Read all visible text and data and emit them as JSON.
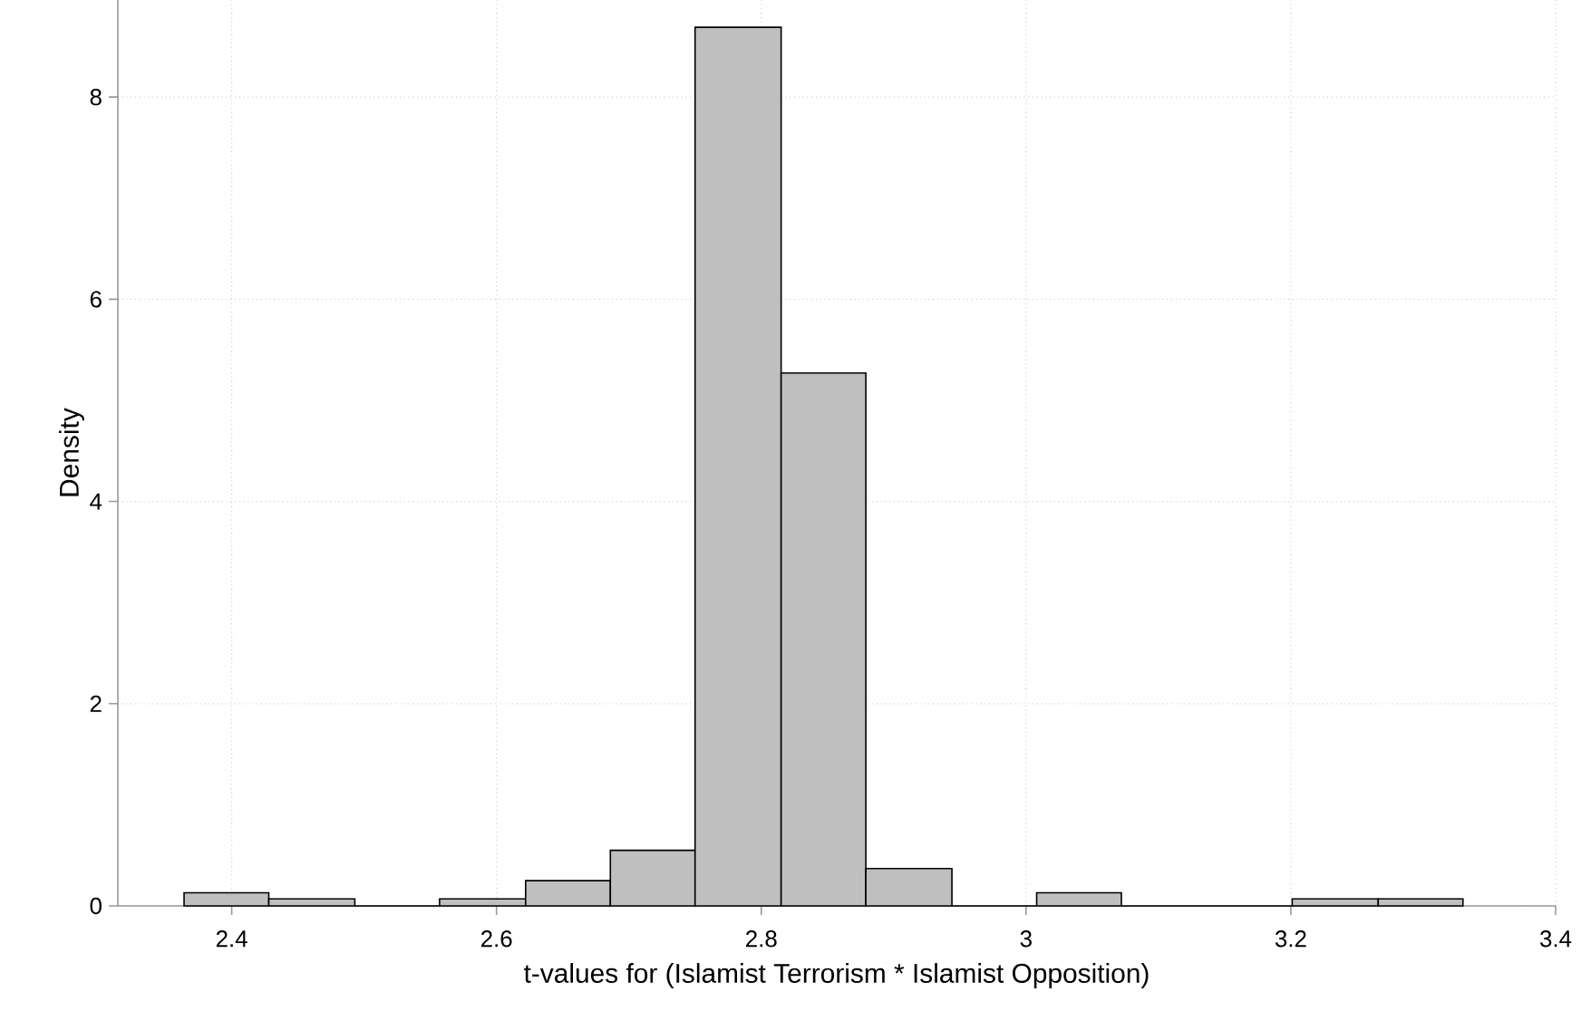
{
  "chart_data": {
    "type": "histogram",
    "xlabel": "t-values for (Islamist Terrorism * Islamist Opposition)",
    "ylabel": "Density",
    "bins": [
      2.364,
      2.428,
      2.493,
      2.557,
      2.622,
      2.686,
      2.75,
      2.815,
      2.879,
      2.944,
      3.008,
      3.072,
      3.201,
      3.266,
      3.33
    ],
    "values": [
      0.13,
      0.07,
      0,
      0.07,
      0.25,
      0.55,
      8.69,
      5.27,
      0.37,
      0,
      0.13,
      0,
      0.07,
      0.07
    ],
    "color": "#bfbfbf",
    "xlim": [
      2.314,
      3.4
    ],
    "ylim": [
      0,
      8.96
    ],
    "xticks": [
      2.4,
      2.6,
      2.8,
      3,
      3.2,
      3.4
    ],
    "yticks": [
      0,
      2,
      4,
      6,
      8
    ],
    "grid": true
  }
}
